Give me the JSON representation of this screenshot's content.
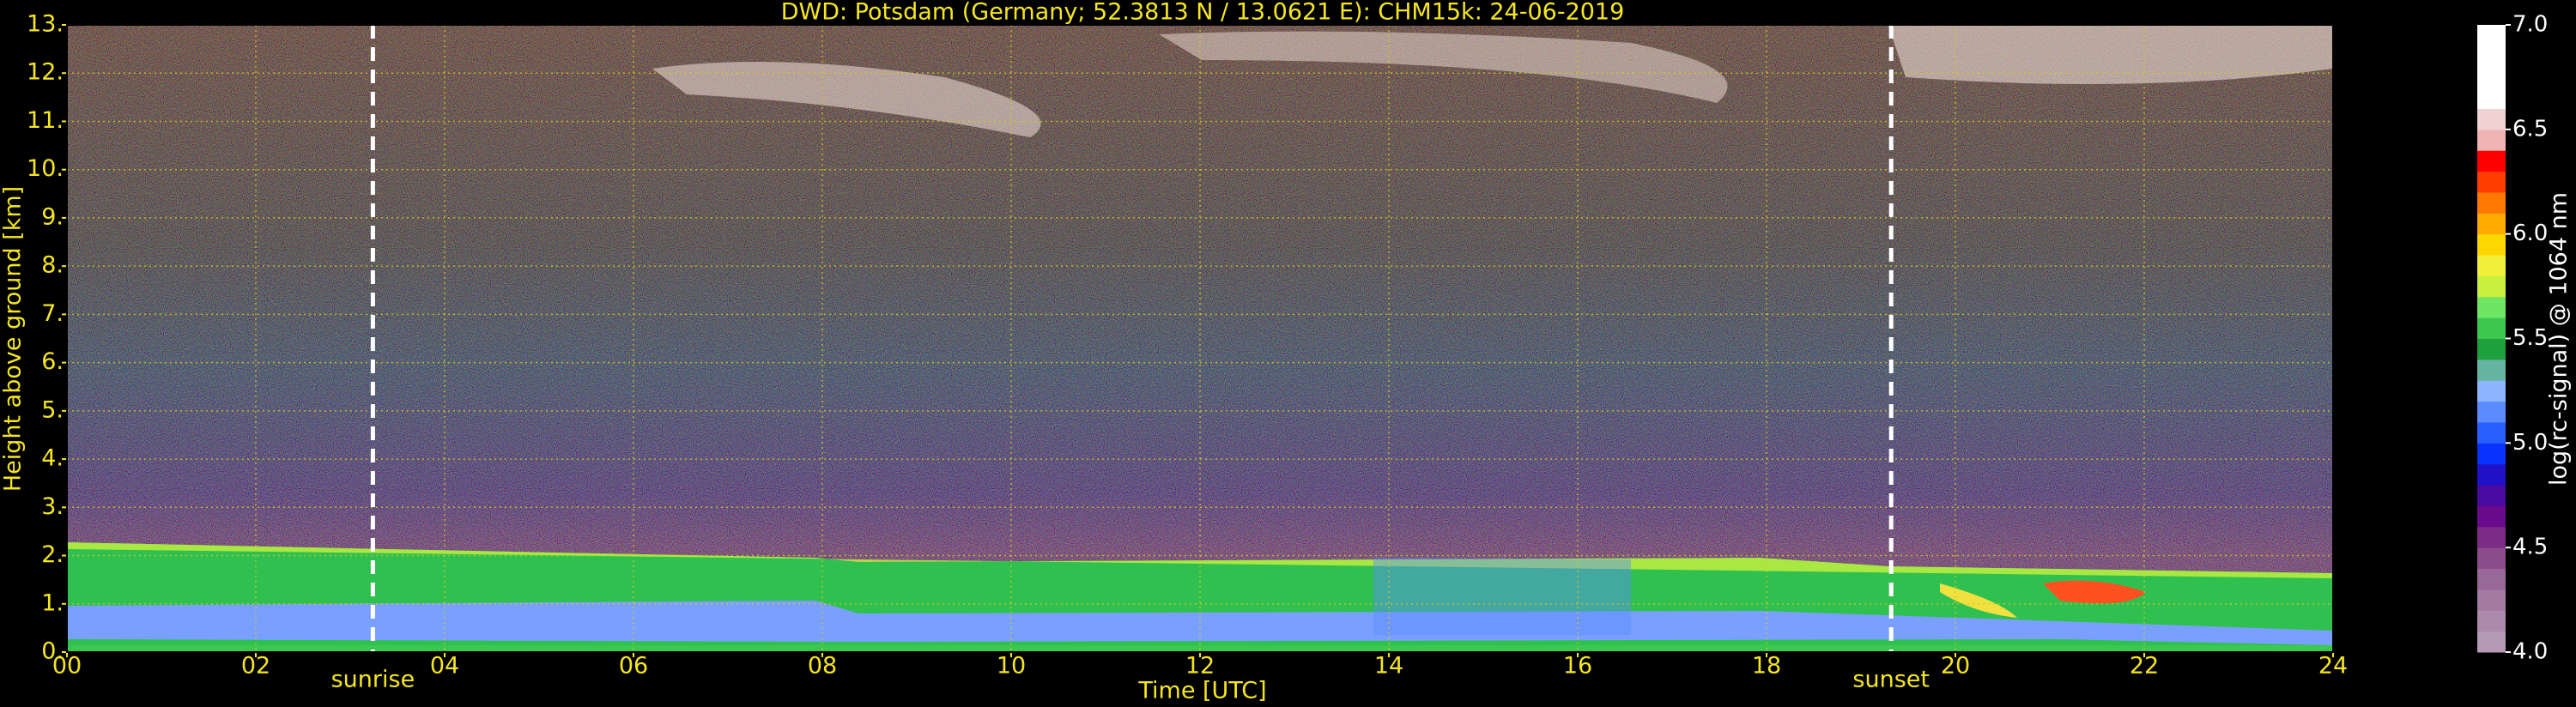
{
  "chart_data": {
    "type": "heatmap",
    "title": "DWD: Potsdam (Germany; 52.3813 N / 13.0621 E):    CHM15k: 24-06-2019",
    "xlabel": "Time [UTC]",
    "ylabel": "Height above ground [km]",
    "xlim": [
      0,
      24
    ],
    "xticks": [
      {
        "value": 0,
        "label": "00"
      },
      {
        "value": 2,
        "label": "02"
      },
      {
        "value": 4,
        "label": "04"
      },
      {
        "value": 6,
        "label": "06"
      },
      {
        "value": 8,
        "label": "08"
      },
      {
        "value": 10,
        "label": "10"
      },
      {
        "value": 12,
        "label": "12"
      },
      {
        "value": 14,
        "label": "14"
      },
      {
        "value": 16,
        "label": "16"
      },
      {
        "value": 18,
        "label": "18"
      },
      {
        "value": 20,
        "label": "20"
      },
      {
        "value": 22,
        "label": "22"
      },
      {
        "value": 24,
        "label": "24"
      }
    ],
    "ylim": [
      0,
      13
    ],
    "yticks": [
      {
        "value": 0,
        "label": "0."
      },
      {
        "value": 1,
        "label": "1."
      },
      {
        "value": 2,
        "label": "2."
      },
      {
        "value": 3,
        "label": "3."
      },
      {
        "value": 4,
        "label": "4."
      },
      {
        "value": 5,
        "label": "5."
      },
      {
        "value": 6,
        "label": "6."
      },
      {
        "value": 7,
        "label": "7."
      },
      {
        "value": 8,
        "label": "8."
      },
      {
        "value": 9,
        "label": "9."
      },
      {
        "value": 10,
        "label": "10."
      },
      {
        "value": 11,
        "label": "11."
      },
      {
        "value": 12,
        "label": "12."
      },
      {
        "value": 13,
        "label": "13."
      }
    ],
    "grid": true,
    "annotations": [
      {
        "text": "sunrise",
        "x": 3.24
      },
      {
        "text": "sunset",
        "x": 19.32
      }
    ],
    "colorbar": {
      "label": "log(rc-signal) @ 1064 nm",
      "lim": [
        4.0,
        7.0
      ],
      "ticks": [
        {
          "value": 4,
          "label": "4.0"
        },
        {
          "value": 4.5,
          "label": "4.5"
        },
        {
          "value": 5,
          "label": "5.0"
        },
        {
          "value": 5.5,
          "label": "5.5"
        },
        {
          "value": 6,
          "label": "6.0"
        },
        {
          "value": 6.5,
          "label": "6.5"
        },
        {
          "value": 7,
          "label": "7.0"
        }
      ],
      "colors": [
        "#b49ab4",
        "#ab8aab",
        "#a27aa2",
        "#986898",
        "#8c4c8c",
        "#7c2c84",
        "#6a0a8c",
        "#4a0aa0",
        "#2010c8",
        "#0a32ff",
        "#2860ff",
        "#5a8cff",
        "#8cb4ff",
        "#64b4a0",
        "#1ea03c",
        "#3cc850",
        "#6ee664",
        "#c8f03c",
        "#f0f03c",
        "#ffd700",
        "#ffaa00",
        "#ff7800",
        "#ff3c00",
        "#ff0000",
        "#f0b4b4",
        "#f0d2d2",
        "#ffffff",
        "#ffffff",
        "#ffffff",
        "#ffffff"
      ]
    }
  }
}
